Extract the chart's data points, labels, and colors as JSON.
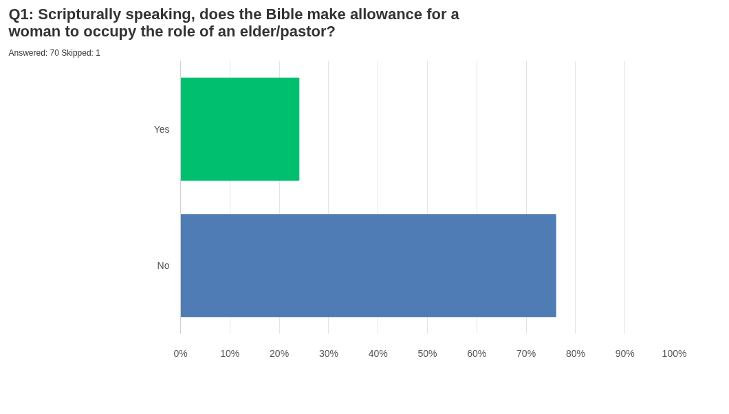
{
  "chart_data": {
    "type": "bar",
    "orientation": "horizontal",
    "title": "Q1: Scripturally speaking, does the Bible make allowance for a woman to occupy the role of an elder/pastor?",
    "subtitle": "Answered: 70    Skipped: 1",
    "categories": [
      "Yes",
      "No"
    ],
    "values": [
      24,
      76
    ],
    "colors": [
      "#00bf6f",
      "#507cb6"
    ],
    "xlim": [
      0,
      100
    ],
    "xticks": [
      {
        "value": 0,
        "label": "0%"
      },
      {
        "value": 10,
        "label": "10%"
      },
      {
        "value": 20,
        "label": "20%"
      },
      {
        "value": 30,
        "label": "30%"
      },
      {
        "value": 40,
        "label": "40%"
      },
      {
        "value": 50,
        "label": "50%"
      },
      {
        "value": 60,
        "label": "60%"
      },
      {
        "value": 70,
        "label": "70%"
      },
      {
        "value": 80,
        "label": "80%"
      },
      {
        "value": 90,
        "label": "90%"
      },
      {
        "value": 100,
        "label": "100%"
      }
    ],
    "grid": "x"
  }
}
